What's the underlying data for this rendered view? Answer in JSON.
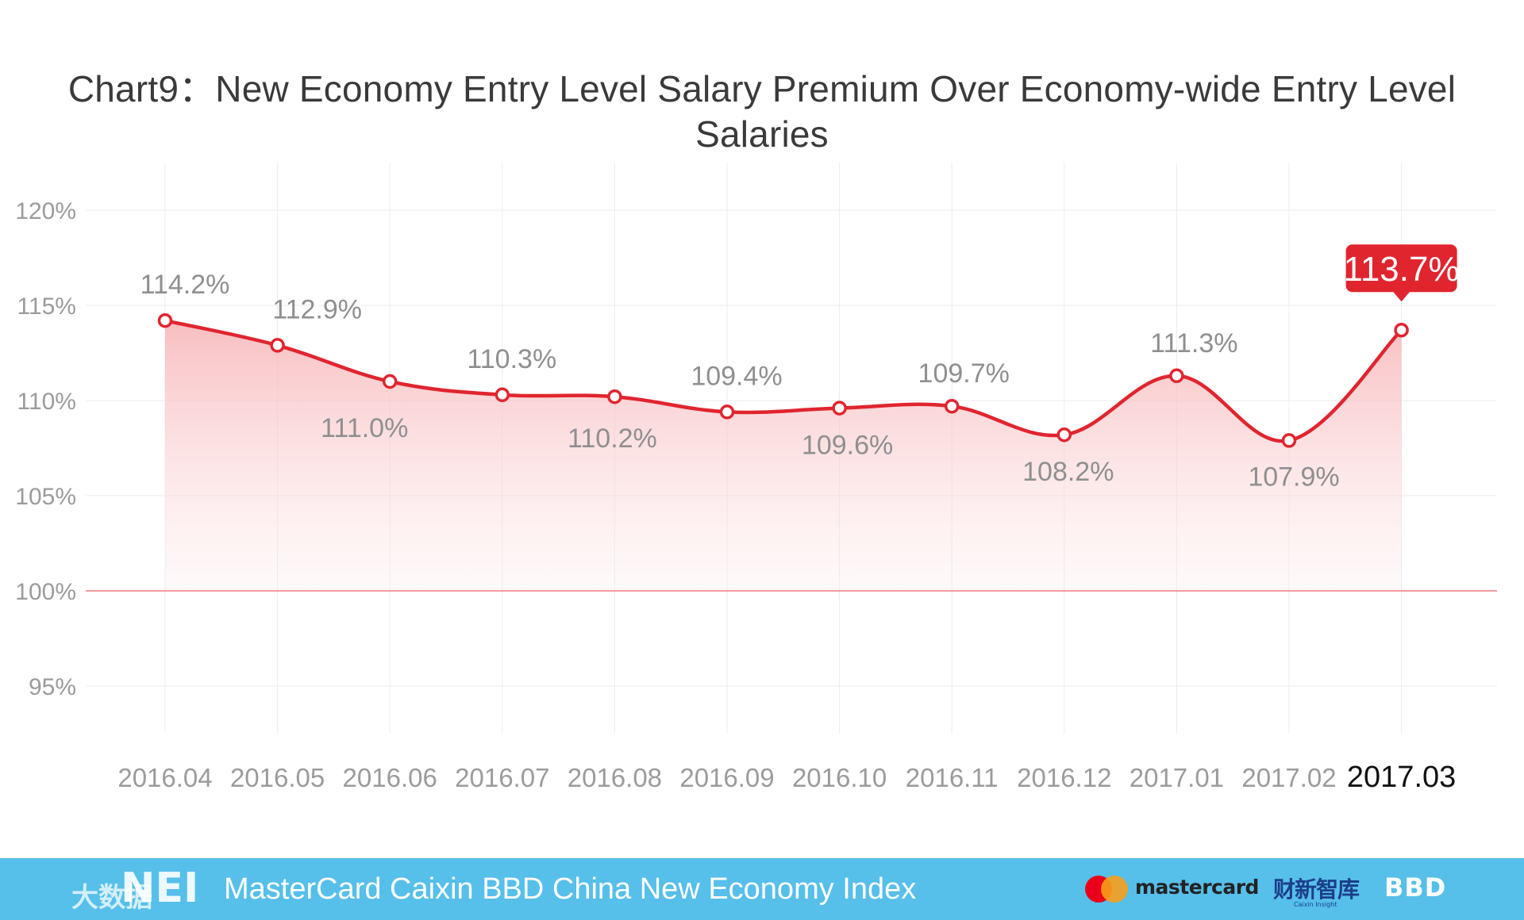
{
  "colors": {
    "line": "#e0252f",
    "grid": "#ececec",
    "baseline": "#f07a80",
    "axis_text": "#9b9b9b",
    "data_label": "#8f8f8f",
    "highlight_bg": "#e0252f",
    "footer_bg": "#56bfea"
  },
  "chart_data": {
    "type": "line",
    "title": "Chart9：New Economy Entry Level Salary Premium Over Economy-wide Entry Level Salaries",
    "categories": [
      "2016.04",
      "2016.05",
      "2016.06",
      "2016.07",
      "2016.08",
      "2016.09",
      "2016.10",
      "2016.11",
      "2016.12",
      "2017.01",
      "2017.02",
      "2017.03"
    ],
    "values": [
      114.2,
      112.9,
      111.0,
      110.3,
      110.2,
      109.4,
      109.6,
      109.7,
      108.2,
      111.3,
      107.9,
      113.7
    ],
    "data_labels": [
      "114.2%",
      "112.9%",
      "111.0%",
      "110.3%",
      "110.2%",
      "109.4%",
      "109.6%",
      "109.7%",
      "108.2%",
      "111.3%",
      "107.9%",
      "113.7%"
    ],
    "label_positions": [
      "above",
      "above",
      "below",
      "above",
      "below",
      "above",
      "below",
      "above",
      "below",
      "above",
      "below",
      "highlight"
    ],
    "y_ticks": [
      "95%",
      "100%",
      "105%",
      "110%",
      "115%",
      "120%"
    ],
    "y_tick_values": [
      95,
      100,
      105,
      110,
      115,
      120
    ],
    "ylim": [
      92.5,
      122.5
    ],
    "baseline": 100,
    "highlight_index": 11,
    "grid": true,
    "area_fill": true
  },
  "footer": {
    "text": "MasterCard Caixin BBD China New Economy Index",
    "watermark_left": "大数据",
    "nei_logo": "NEI",
    "mastercard_label": "mastercard",
    "caixin_label": "财新智库",
    "caixin_sub": "Caixin Insight",
    "bbd_label": "BBD"
  }
}
